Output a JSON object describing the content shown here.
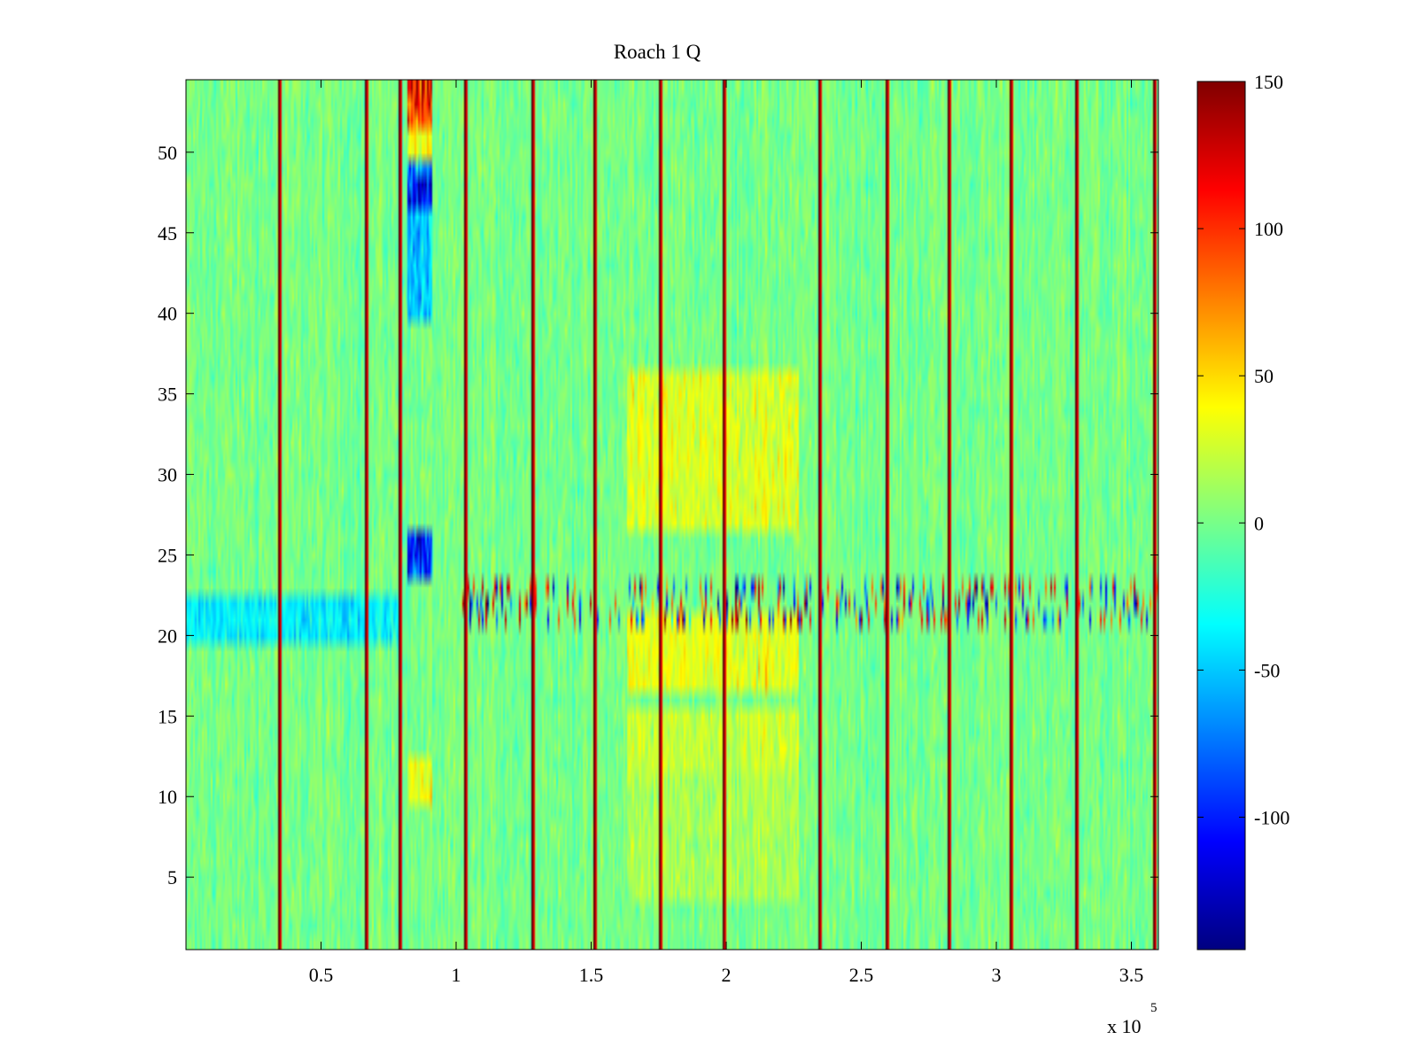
{
  "chart_data": {
    "type": "heatmap",
    "title": "Roach 1 Q",
    "xlabel": "",
    "ylabel": "",
    "x_multiplier_label": {
      "base": "x 10",
      "exponent": "5"
    },
    "xlim": [
      0,
      360000
    ],
    "ylim": [
      0.5,
      54.5
    ],
    "x_ticks": [
      {
        "value": 50000,
        "label": "0.5"
      },
      {
        "value": 100000,
        "label": "1"
      },
      {
        "value": 150000,
        "label": "1.5"
      },
      {
        "value": 200000,
        "label": "2"
      },
      {
        "value": 250000,
        "label": "2.5"
      },
      {
        "value": 300000,
        "label": "3"
      },
      {
        "value": 350000,
        "label": "3.5"
      }
    ],
    "y_ticks": [
      {
        "value": 5,
        "label": "5"
      },
      {
        "value": 10,
        "label": "10"
      },
      {
        "value": 15,
        "label": "15"
      },
      {
        "value": 20,
        "label": "20"
      },
      {
        "value": 25,
        "label": "25"
      },
      {
        "value": 30,
        "label": "30"
      },
      {
        "value": 35,
        "label": "35"
      },
      {
        "value": 40,
        "label": "40"
      },
      {
        "value": 45,
        "label": "45"
      },
      {
        "value": 50,
        "label": "50"
      }
    ],
    "rows": 54,
    "colorbar": {
      "colormap": "jet",
      "range": [
        -145,
        150
      ],
      "ticks": [
        {
          "value": 150,
          "label": "150"
        },
        {
          "value": 100,
          "label": "100"
        },
        {
          "value": 50,
          "label": "50"
        },
        {
          "value": 0,
          "label": "0"
        },
        {
          "value": -50,
          "label": "-50"
        },
        {
          "value": -100,
          "label": "-100"
        }
      ]
    },
    "background_level": 0,
    "column_stripes_x": [
      34000,
      66000,
      79000,
      103000,
      128000,
      151000,
      175000,
      199000,
      234000,
      259000,
      282000,
      305000,
      329000,
      358000
    ],
    "hot_regions": [
      {
        "x": [
          163000,
          227000
        ],
        "y": [
          27,
          36
        ],
        "value": 35
      },
      {
        "x": [
          163000,
          227000
        ],
        "y": [
          17,
          21
        ],
        "value": 38
      },
      {
        "x": [
          163000,
          227000
        ],
        "y": [
          12,
          15
        ],
        "value": 28
      },
      {
        "x": [
          163000,
          227000
        ],
        "y": [
          4,
          11
        ],
        "value": 18
      },
      {
        "x": [
          82000,
          91000
        ],
        "y": [
          52,
          54
        ],
        "value": 120
      },
      {
        "x": [
          82000,
          91000
        ],
        "y": [
          49,
          51
        ],
        "value": 40
      },
      {
        "x": [
          82000,
          91000
        ],
        "y": [
          10,
          12
        ],
        "value": 40
      }
    ],
    "cold_regions": [
      {
        "x": [
          82000,
          91000
        ],
        "y": [
          47,
          49
        ],
        "value": -130
      },
      {
        "x": [
          82000,
          91000
        ],
        "y": [
          40,
          46
        ],
        "value": -60
      },
      {
        "x": [
          82000,
          91000
        ],
        "y": [
          24,
          26
        ],
        "value": -110
      },
      {
        "x": [
          0,
          80000
        ],
        "y": [
          20,
          22
        ],
        "value": -45
      }
    ],
    "noisy_band": {
      "y": [
        20.5,
        23.5
      ],
      "x": [
        0,
        360000
      ],
      "amplitude": 140
    }
  }
}
